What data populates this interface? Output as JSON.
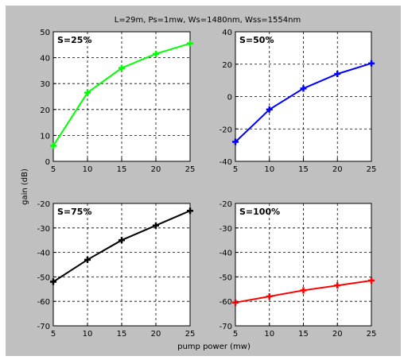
{
  "figure": {
    "title": "L=29m, Ps=1mw, Ws=1480nm, Wss=1554nm",
    "xlabel": "pump power (mw)",
    "ylabel": "gain (dB)"
  },
  "chart_data": [
    {
      "type": "line",
      "annotation": "S=25%",
      "x": [
        5,
        10,
        15,
        20,
        25
      ],
      "series": [
        {
          "color": "#00ff00",
          "values": [
            6,
            26.5,
            36,
            41.5,
            45.5
          ]
        }
      ],
      "xlim": [
        5,
        25
      ],
      "ylim": [
        0,
        50
      ],
      "xticks": [
        5,
        10,
        15,
        20,
        25
      ],
      "yticks": [
        0,
        10,
        20,
        30,
        40,
        50
      ],
      "grid": "dashed"
    },
    {
      "type": "line",
      "annotation": "S=50%",
      "x": [
        5,
        10,
        15,
        20,
        25
      ],
      "series": [
        {
          "color": "#0000ff",
          "values": [
            -28,
            -8,
            5,
            14,
            20.5
          ]
        }
      ],
      "xlim": [
        5,
        25
      ],
      "ylim": [
        -40,
        40
      ],
      "xticks": [
        5,
        10,
        15,
        20,
        25
      ],
      "yticks": [
        -40,
        -20,
        0,
        20,
        40
      ],
      "grid": "dashed"
    },
    {
      "type": "line",
      "annotation": "S=75%",
      "x": [
        5,
        10,
        15,
        20,
        25
      ],
      "series": [
        {
          "color": "#000000",
          "values": [
            -52,
            -43,
            -35,
            -29,
            -23
          ]
        }
      ],
      "xlim": [
        5,
        25
      ],
      "ylim": [
        -70,
        -20
      ],
      "xticks": [
        5,
        10,
        15,
        20,
        25
      ],
      "yticks": [
        -70,
        -60,
        -50,
        -40,
        -30,
        -20
      ],
      "grid": "dashed"
    },
    {
      "type": "line",
      "annotation": "S=100%",
      "x": [
        5,
        10,
        15,
        20,
        25
      ],
      "series": [
        {
          "color": "#ff0000",
          "values": [
            -60.5,
            -58,
            -55.5,
            -53.5,
            -51.5
          ]
        }
      ],
      "xlim": [
        5,
        25
      ],
      "ylim": [
        -70,
        -20
      ],
      "xticks": [
        5,
        10,
        15,
        20,
        25
      ],
      "yticks": [
        -70,
        -60,
        -50,
        -40,
        -30,
        -20
      ],
      "grid": "dashed"
    }
  ]
}
